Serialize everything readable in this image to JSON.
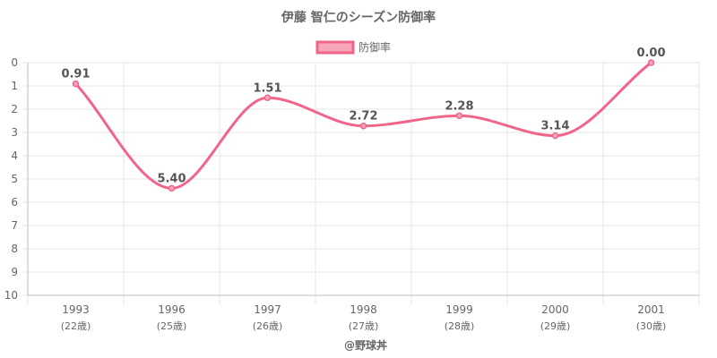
{
  "chart_data": {
    "type": "line",
    "title": "伊藤 智仁のシーズン防御率",
    "credit": "@野球丼",
    "categories": [
      "1993",
      "1996",
      "1997",
      "1998",
      "1999",
      "2000",
      "2001"
    ],
    "category_sublabels": [
      "(22歳)",
      "(25歳)",
      "(26歳)",
      "(27歳)",
      "(28歳)",
      "(29歳)",
      "(30歳)"
    ],
    "series": [
      {
        "name": "防御率",
        "values": [
          0.91,
          5.4,
          1.51,
          2.72,
          2.28,
          3.14,
          0.0
        ],
        "labels": [
          "0.91",
          "5.40",
          "1.51",
          "2.72",
          "2.28",
          "3.14",
          "0.00"
        ],
        "color": "#f0668a",
        "fill": "#f7a6ba"
      }
    ],
    "ylim": [
      0,
      10
    ],
    "y_reversed": true,
    "yticks": [
      0,
      1,
      2,
      3,
      4,
      5,
      6,
      7,
      8,
      9,
      10
    ],
    "grid": true,
    "legend_position": "top"
  }
}
